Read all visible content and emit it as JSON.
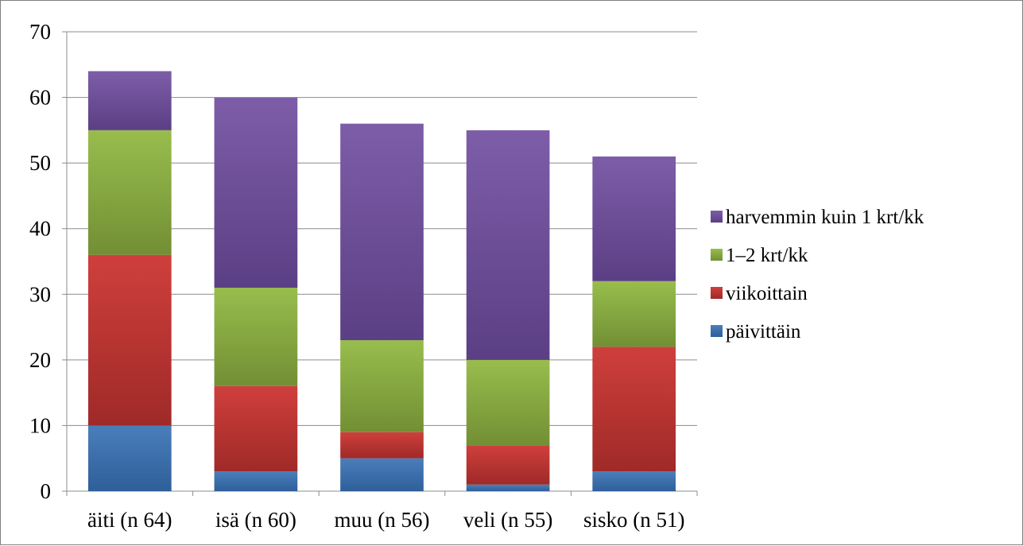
{
  "chart_data": {
    "type": "bar",
    "stacked": true,
    "title": "",
    "xlabel": "",
    "ylabel": "",
    "categories": [
      "äiti (n 64)",
      "isä (n 60)",
      "muu (n 56)",
      "veli (n 55)",
      "sisko (n 51)"
    ],
    "series": [
      {
        "name": "päivittäin",
        "values": [
          10,
          3,
          5,
          1,
          3
        ],
        "color": "#4a7ebb",
        "dark": "#2e5f99"
      },
      {
        "name": "viikoittain",
        "values": [
          26,
          13,
          4,
          6,
          19
        ],
        "color": "#cf3f3c",
        "dark": "#9f2a28"
      },
      {
        "name": "1–2 krt/kk",
        "values": [
          19,
          15,
          14,
          13,
          10
        ],
        "color": "#98bd4d",
        "dark": "#728f34"
      },
      {
        "name": "harvemmin kuin 1 krt/kk",
        "values": [
          9,
          29,
          33,
          35,
          19
        ],
        "color": "#7d5da8",
        "dark": "#5b3f84"
      }
    ],
    "ylim": [
      0,
      70
    ],
    "yticks": [
      0,
      10,
      20,
      30,
      40,
      50,
      60,
      70
    ],
    "grid": true,
    "legend_position": "right",
    "legend_order": "reversed"
  }
}
